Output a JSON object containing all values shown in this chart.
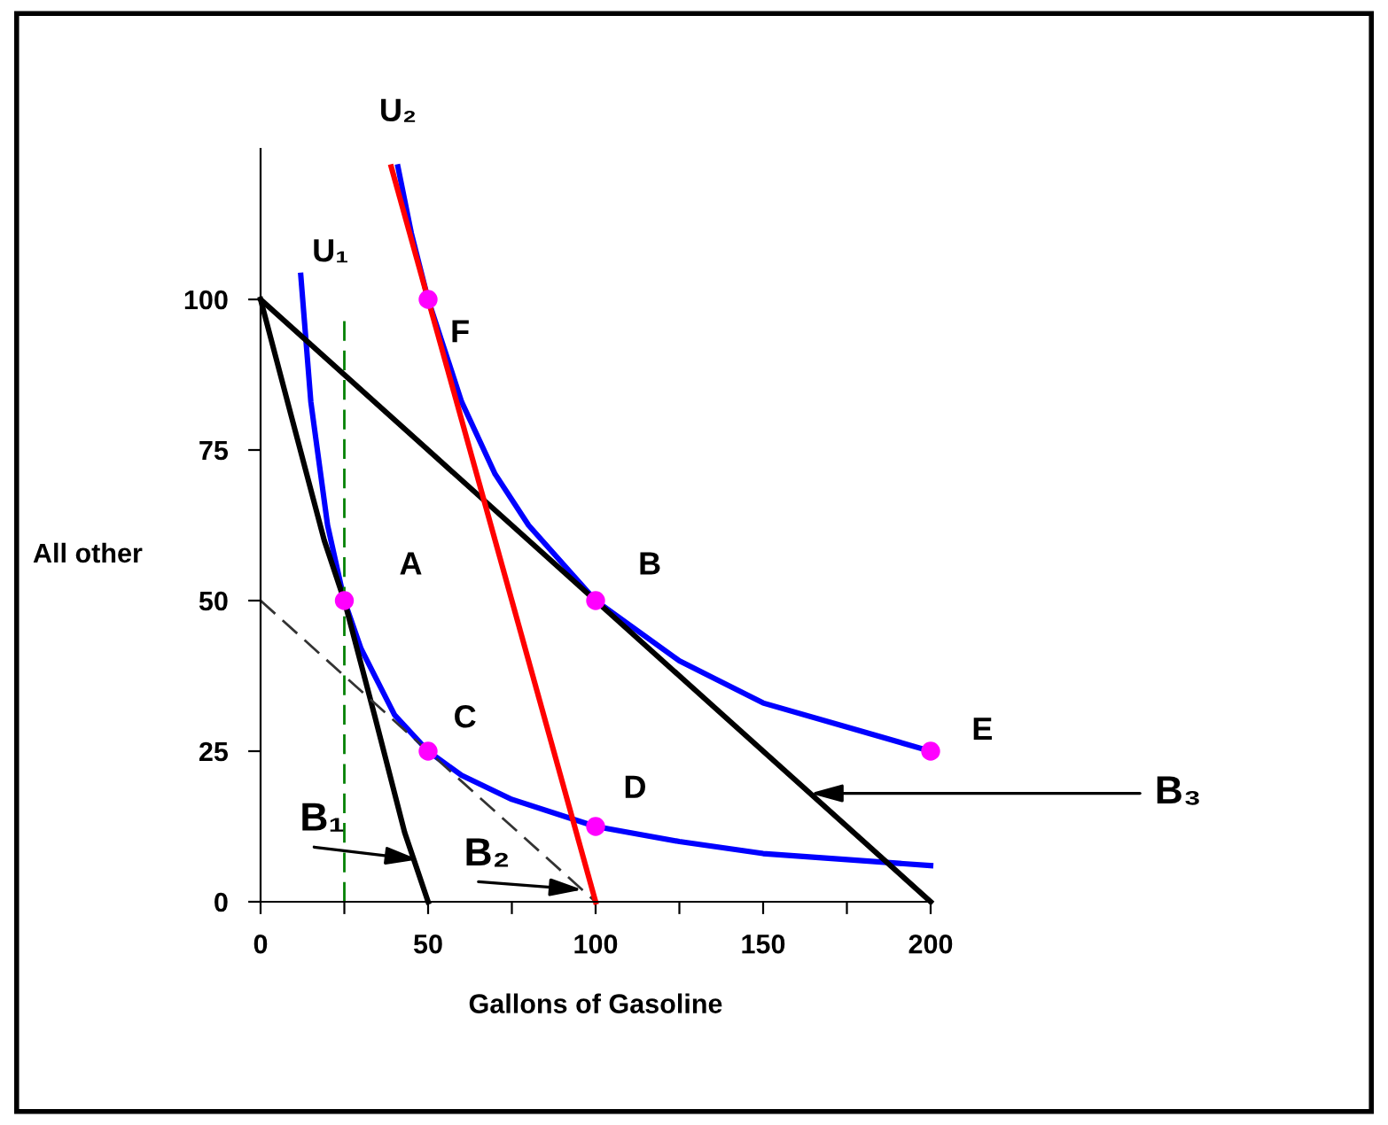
{
  "chart_data": {
    "type": "line",
    "xlabel": "Gallons of Gasoline",
    "ylabel": "All other",
    "xlim": [
      0,
      200
    ],
    "ylim": [
      0,
      125
    ],
    "xticks": [
      0,
      {
        "value": 25,
        "label": null
      },
      50,
      {
        "value": 75,
        "label": null
      },
      100,
      {
        "value": 125,
        "label": null
      },
      150,
      {
        "value": 175,
        "label": null
      },
      200
    ],
    "yticks": [
      0,
      25,
      50,
      75,
      100
    ],
    "grid": false,
    "legend": false,
    "series": [
      {
        "color": "#0000ff",
        "line_style": "solid",
        "x": [
          12,
          15,
          20,
          25,
          30,
          40,
          50,
          60,
          75,
          100,
          125,
          150,
          175,
          200
        ],
        "values": [
          104,
          83,
          62.5,
          50,
          42,
          31,
          25,
          21,
          17,
          12.5,
          10,
          8,
          7,
          6
        ]
      },
      {
        "color": "#0000ff",
        "line_style": "solid",
        "x": [
          41,
          45,
          50,
          60,
          70,
          80,
          100,
          125,
          150,
          175,
          200
        ],
        "values": [
          122,
          111,
          100,
          83,
          71,
          62.5,
          50,
          40,
          33,
          29,
          25
        ]
      },
      {
        "color": "#000000",
        "line_style": "solid",
        "x": [
          0,
          9,
          19,
          25,
          34,
          43,
          50
        ],
        "values": [
          100,
          81,
          60,
          50,
          31,
          11.5,
          0
        ]
      },
      {
        "color": "#000000",
        "line_style": "solid",
        "x": [
          0,
          100,
          200
        ],
        "values": [
          100,
          50,
          0
        ]
      },
      {
        "color": "#333333",
        "line_style": "dashed",
        "x": [
          0,
          50,
          100
        ],
        "values": [
          50,
          25,
          0
        ]
      },
      {
        "color": "#ff0000",
        "line_style": "solid",
        "x": [
          39,
          100
        ],
        "values": [
          122,
          0
        ]
      },
      {
        "color": "#008000",
        "line_style": "dashed",
        "x": [
          25,
          25
        ],
        "values": [
          0,
          97
        ]
      },
      {
        "type": "scatter",
        "color": "#ff00ff",
        "marker": "circle",
        "x": [
          25,
          100,
          50,
          100,
          200,
          50
        ],
        "values": [
          50,
          50,
          25,
          12.5,
          25,
          100
        ]
      }
    ],
    "annotations": [
      {
        "text": "U₁",
        "x": 12,
        "y": 104
      },
      {
        "text": "U₂",
        "x": 41,
        "y": 122
      },
      {
        "text": "A",
        "x": 25,
        "y": 50
      },
      {
        "text": "B",
        "x": 100,
        "y": 50
      },
      {
        "text": "C",
        "x": 50,
        "y": 25
      },
      {
        "text": "D",
        "x": 100,
        "y": 12.5
      },
      {
        "text": "E",
        "x": 200,
        "y": 25
      },
      {
        "text": "F",
        "x": 50,
        "y": 100
      },
      {
        "text": "B₁",
        "x": 47,
        "y": 7
      },
      {
        "text": "B₂",
        "x": 96,
        "y": 2
      },
      {
        "text": "B₃",
        "x": 164,
        "y": 18
      }
    ]
  }
}
